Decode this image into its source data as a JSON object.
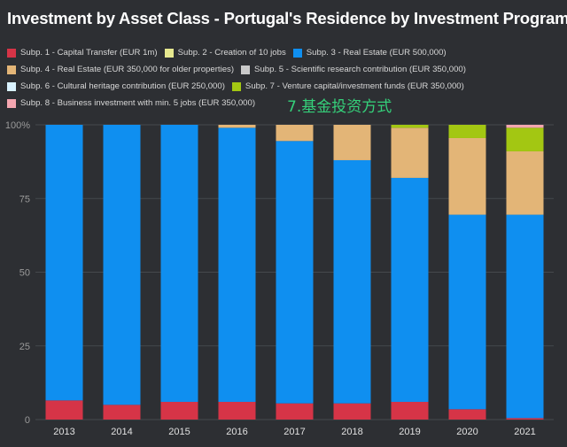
{
  "chart_data": {
    "type": "bar",
    "stacked": true,
    "title": "Investment by Asset Class - Portugal's Residence by Investment Program",
    "xlabel": "",
    "ylabel": "",
    "ylim": [
      0,
      100
    ],
    "y_ticks": [
      "0",
      "25",
      "50",
      "75",
      "100%"
    ],
    "grid": true,
    "legend_position": "top",
    "categories": [
      "2013",
      "2014",
      "2015",
      "2016",
      "2017",
      "2018",
      "2019",
      "2020",
      "2021"
    ],
    "series": [
      {
        "name": "Subp. 1 - Capital Transfer (EUR 1m)",
        "color": "#d63447",
        "values": [
          6.5,
          5,
          6,
          6,
          5.5,
          5.5,
          6,
          3.5,
          0.5
        ]
      },
      {
        "name": "Subp. 2 - Creation of 10 jobs",
        "color": "#e6e88f",
        "values": [
          0,
          0,
          0,
          0,
          0,
          0,
          0,
          0,
          0
        ]
      },
      {
        "name": "Subp. 3 - Real Estate (EUR 500,000)",
        "color": "#0f8ff0",
        "values": [
          93.5,
          95,
          94,
          93,
          89,
          82.5,
          76,
          66,
          69
        ]
      },
      {
        "name": "Subp. 4 - Real Estate (EUR 350,000 for older properties)",
        "color": "#e3b577",
        "values": [
          0,
          0,
          0,
          1,
          5.5,
          12,
          17,
          26,
          21.5
        ]
      },
      {
        "name": "Subp. 5 - Scientific research contribution (EUR 350,000)",
        "color": "#c9c9c9",
        "values": [
          0,
          0,
          0,
          0,
          0,
          0,
          0,
          0,
          0
        ]
      },
      {
        "name": "Subp. 6 - Cultural heritage contribution (EUR 250,000)",
        "color": "#d9f2ff",
        "values": [
          0,
          0,
          0,
          0,
          0,
          0,
          0,
          0,
          0
        ]
      },
      {
        "name": "Subp. 7 - Venture capital/investment funds (EUR 350,000)",
        "color": "#a3c712",
        "values": [
          0,
          0,
          0,
          0,
          0,
          0,
          1,
          4.5,
          8
        ]
      },
      {
        "name": "Subp. 8 - Business investment with min. 5 jobs (EUR 350,000)",
        "color": "#f4a6b0",
        "values": [
          0,
          0,
          0,
          0,
          0,
          0,
          0,
          0,
          1
        ]
      }
    ],
    "annotation": "7.基金投资方式"
  },
  "legend_rows": [
    [
      0,
      1,
      2
    ],
    [
      3,
      4
    ],
    [
      5,
      6
    ],
    [
      7
    ]
  ]
}
